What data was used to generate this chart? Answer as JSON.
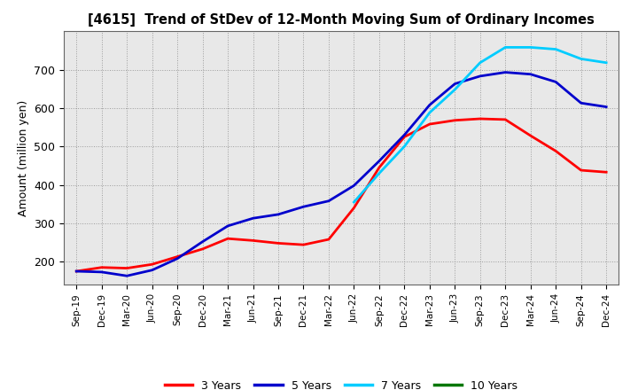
{
  "title": "[4615]  Trend of StDev of 12-Month Moving Sum of Ordinary Incomes",
  "ylabel": "Amount (million yen)",
  "background_color": "#ffffff",
  "plot_bg_color": "#e8e8e8",
  "grid_color": "#888888",
  "ylim": [
    140,
    800
  ],
  "yticks": [
    200,
    300,
    400,
    500,
    600,
    700
  ],
  "x_labels": [
    "Sep-19",
    "Dec-19",
    "Mar-20",
    "Jun-20",
    "Sep-20",
    "Dec-20",
    "Mar-21",
    "Jun-21",
    "Sep-21",
    "Dec-21",
    "Mar-22",
    "Jun-22",
    "Sep-22",
    "Dec-22",
    "Mar-23",
    "Jun-23",
    "Sep-23",
    "Dec-23",
    "Mar-24",
    "Jun-24",
    "Sep-24",
    "Dec-24"
  ],
  "s3": [
    175,
    185,
    183,
    193,
    213,
    233,
    260,
    255,
    248,
    244,
    258,
    340,
    445,
    525,
    558,
    568,
    572,
    570,
    528,
    488,
    438,
    433
  ],
  "s5": [
    175,
    173,
    163,
    178,
    208,
    252,
    293,
    313,
    323,
    343,
    358,
    398,
    462,
    530,
    608,
    663,
    683,
    693,
    688,
    668,
    613,
    603
  ],
  "s7": [
    null,
    null,
    null,
    null,
    null,
    null,
    null,
    null,
    null,
    null,
    null,
    355,
    430,
    500,
    588,
    648,
    718,
    758,
    758,
    753,
    728,
    718
  ],
  "s10": [
    null,
    null,
    null,
    null,
    null,
    null,
    null,
    null,
    null,
    null,
    null,
    null,
    null,
    null,
    null,
    null,
    null,
    null,
    null,
    null,
    null,
    null
  ],
  "color_3y": "#ff0000",
  "color_5y": "#0000cc",
  "color_7y": "#00ccff",
  "color_10y": "#007700",
  "linewidth": 2.0
}
